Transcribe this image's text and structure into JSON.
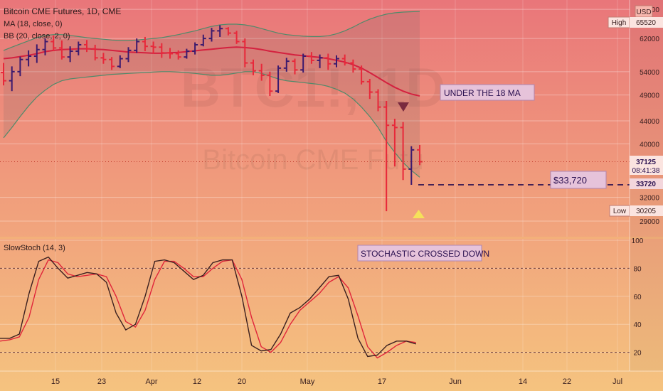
{
  "header": {
    "title": "Bitcoin CME Futures, 1D, CME",
    "ma_label": "MA (18, close, 0)",
    "bb_label": "BB (20, close, 2, 0)",
    "currency": "USD"
  },
  "watermark": {
    "big": "BTC1!, 1D",
    "small": "Bitcoin CME Futu"
  },
  "price_axis": {
    "ticks": [
      "70000",
      "62000",
      "54000",
      "49000",
      "44000",
      "40000",
      "32000",
      "29000"
    ],
    "high_label": "High",
    "high_value": "65520",
    "low_label": "Low",
    "low_value": "30205",
    "last_price": "37125",
    "countdown": "08:41:38",
    "level": "33720"
  },
  "annotations": {
    "ma_note": "UNDER THE 18 MA",
    "price_note": "$33,720",
    "stoch_note": "STOCHASTIC CROSSED DOWN"
  },
  "stoch_panel": {
    "label": "SlowStoch (14, 3)",
    "ticks": [
      "100",
      "80",
      "60",
      "40",
      "20"
    ]
  },
  "time_axis": {
    "ticks": [
      "15",
      "23",
      "Apr",
      "12",
      "20",
      "May",
      "17",
      "Jun",
      "14",
      "22",
      "Jul"
    ]
  },
  "colors": {
    "up_bar": "#3c1a6e",
    "down_bar": "#e8283a",
    "ma_line": "#d4213f",
    "bb_line": "#4f8a6a",
    "stoch_k": "#3a1f1f",
    "stoch_d": "#e0253a"
  },
  "chart_data": {
    "type": "line",
    "title": "Bitcoin CME Futures, 1D, CME",
    "y_scale": "log",
    "ylim": [
      28000,
      72000
    ],
    "level_line": 33720,
    "price_series": [
      {
        "o": 53800,
        "h": 56000,
        "l": 51000,
        "c": 52000
      },
      {
        "o": 52000,
        "h": 55200,
        "l": 49800,
        "c": 54000
      },
      {
        "o": 54000,
        "h": 57500,
        "l": 53000,
        "c": 56800
      },
      {
        "o": 56800,
        "h": 59000,
        "l": 55200,
        "c": 57600
      },
      {
        "o": 57600,
        "h": 60500,
        "l": 56000,
        "c": 59200
      },
      {
        "o": 59200,
        "h": 62000,
        "l": 57800,
        "c": 61200
      },
      {
        "o": 61200,
        "h": 62800,
        "l": 58800,
        "c": 59600
      },
      {
        "o": 59600,
        "h": 61500,
        "l": 56800,
        "c": 57400
      },
      {
        "o": 57400,
        "h": 60000,
        "l": 56200,
        "c": 58800
      },
      {
        "o": 58800,
        "h": 61200,
        "l": 57800,
        "c": 60400
      },
      {
        "o": 60400,
        "h": 61600,
        "l": 58600,
        "c": 59400
      },
      {
        "o": 59400,
        "h": 60400,
        "l": 56600,
        "c": 57200
      },
      {
        "o": 57200,
        "h": 58400,
        "l": 55800,
        "c": 56800
      },
      {
        "o": 56800,
        "h": 57400,
        "l": 54400,
        "c": 55200
      },
      {
        "o": 55200,
        "h": 57800,
        "l": 54800,
        "c": 57000
      },
      {
        "o": 57000,
        "h": 59800,
        "l": 56200,
        "c": 59000
      },
      {
        "o": 59000,
        "h": 62000,
        "l": 58400,
        "c": 61200
      },
      {
        "o": 61200,
        "h": 62400,
        "l": 58800,
        "c": 60000
      },
      {
        "o": 60000,
        "h": 61200,
        "l": 58200,
        "c": 59800
      },
      {
        "o": 59800,
        "h": 60800,
        "l": 57200,
        "c": 58400
      },
      {
        "o": 58400,
        "h": 59600,
        "l": 57000,
        "c": 58200
      },
      {
        "o": 58200,
        "h": 59000,
        "l": 56800,
        "c": 57400
      },
      {
        "o": 57400,
        "h": 59400,
        "l": 57000,
        "c": 58800
      },
      {
        "o": 58800,
        "h": 61000,
        "l": 58000,
        "c": 60400
      },
      {
        "o": 60400,
        "h": 63000,
        "l": 60000,
        "c": 62000
      },
      {
        "o": 62000,
        "h": 64800,
        "l": 61200,
        "c": 64000
      },
      {
        "o": 64000,
        "h": 65520,
        "l": 62400,
        "c": 64600
      },
      {
        "o": 64600,
        "h": 65000,
        "l": 62800,
        "c": 63400
      },
      {
        "o": 63400,
        "h": 64000,
        "l": 60600,
        "c": 61200
      },
      {
        "o": 61200,
        "h": 62000,
        "l": 55000,
        "c": 56000
      },
      {
        "o": 56000,
        "h": 56800,
        "l": 53200,
        "c": 54200
      },
      {
        "o": 54200,
        "h": 55800,
        "l": 52000,
        "c": 53200
      },
      {
        "o": 53200,
        "h": 54000,
        "l": 48800,
        "c": 49800
      },
      {
        "o": 49800,
        "h": 55400,
        "l": 49400,
        "c": 54800
      },
      {
        "o": 54800,
        "h": 57200,
        "l": 54000,
        "c": 56400
      },
      {
        "o": 56400,
        "h": 57000,
        "l": 53400,
        "c": 54400
      },
      {
        "o": 54400,
        "h": 58200,
        "l": 53800,
        "c": 57600
      },
      {
        "o": 57600,
        "h": 58600,
        "l": 55800,
        "c": 56600
      },
      {
        "o": 56600,
        "h": 58000,
        "l": 54800,
        "c": 57200
      },
      {
        "o": 57200,
        "h": 58200,
        "l": 54400,
        "c": 55800
      },
      {
        "o": 55800,
        "h": 57800,
        "l": 55000,
        "c": 57000
      },
      {
        "o": 57000,
        "h": 58000,
        "l": 55400,
        "c": 56000
      },
      {
        "o": 56000,
        "h": 56800,
        "l": 53800,
        "c": 54600
      },
      {
        "o": 54600,
        "h": 55400,
        "l": 51200,
        "c": 51800
      },
      {
        "o": 51800,
        "h": 52400,
        "l": 48200,
        "c": 49600
      },
      {
        "o": 49600,
        "h": 50200,
        "l": 45800,
        "c": 46600
      },
      {
        "o": 46600,
        "h": 47800,
        "l": 30205,
        "c": 43200
      },
      {
        "o": 43200,
        "h": 44400,
        "l": 36400,
        "c": 42800
      },
      {
        "o": 42800,
        "h": 43800,
        "l": 34400,
        "c": 36000
      },
      {
        "o": 36000,
        "h": 39600,
        "l": 33720,
        "c": 39000
      },
      {
        "o": 39000,
        "h": 39800,
        "l": 36600,
        "c": 37125
      }
    ],
    "ma18": [
      57000,
      57200,
      57500,
      57800,
      58200,
      58700,
      59000,
      59200,
      59300,
      59400,
      59400,
      59300,
      59200,
      59000,
      58800,
      58600,
      58500,
      58400,
      58300,
      58300,
      58400,
      58500,
      58700,
      58900,
      59100,
      59300,
      59500,
      59700,
      59800,
      59700,
      59500,
      59200,
      58800,
      58500,
      58200,
      57900,
      57700,
      57500,
      57300,
      57000,
      56600,
      56200,
      55600,
      54800,
      53800,
      52700,
      51600,
      50600,
      49800,
      49200,
      48800
    ],
    "bb_upper": [
      59000,
      59800,
      60600,
      61400,
      62200,
      62800,
      63000,
      63000,
      62800,
      62500,
      62200,
      62000,
      61800,
      61600,
      61500,
      61500,
      61600,
      61800,
      62000,
      62200,
      62600,
      63000,
      63500,
      64000,
      64600,
      65200,
      65600,
      65800,
      65800,
      65600,
      65200,
      64600,
      64000,
      63400,
      63000,
      62800,
      62600,
      62500,
      62500,
      62700,
      63200,
      64000,
      65000,
      66200,
      67200,
      68000,
      68600,
      69000,
      69200,
      69300,
      69400
    ],
    "bb_lower": [
      41000,
      42800,
      44800,
      46800,
      48600,
      50000,
      51200,
      52000,
      52400,
      52600,
      52800,
      53000,
      53200,
      53400,
      53500,
      53600,
      53700,
      53800,
      53900,
      54000,
      54000,
      53900,
      53800,
      53600,
      53400,
      53200,
      53200,
      53400,
      53700,
      54000,
      54000,
      53600,
      53000,
      52400,
      52000,
      51800,
      51600,
      51400,
      51200,
      50800,
      50200,
      49400,
      48200,
      46600,
      44800,
      42800,
      40400,
      38600,
      37000,
      35800,
      34800
    ],
    "stoch_k": [
      30,
      30,
      33,
      62,
      85,
      88,
      80,
      73,
      75,
      77,
      76,
      70,
      48,
      36,
      40,
      60,
      85,
      86,
      84,
      78,
      72,
      75,
      84,
      86,
      86,
      60,
      25,
      21,
      22,
      33,
      48,
      52,
      58,
      66,
      74,
      75,
      58,
      30,
      17,
      18,
      25,
      28,
      28,
      26
    ],
    "stoch_d": [
      28,
      29,
      31,
      45,
      72,
      86,
      84,
      76,
      74,
      75,
      76,
      74,
      60,
      42,
      38,
      50,
      72,
      85,
      85,
      80,
      74,
      74,
      80,
      85,
      86,
      72,
      45,
      24,
      20,
      27,
      40,
      50,
      56,
      62,
      70,
      74,
      66,
      46,
      24,
      16,
      20,
      25,
      28,
      27
    ]
  }
}
